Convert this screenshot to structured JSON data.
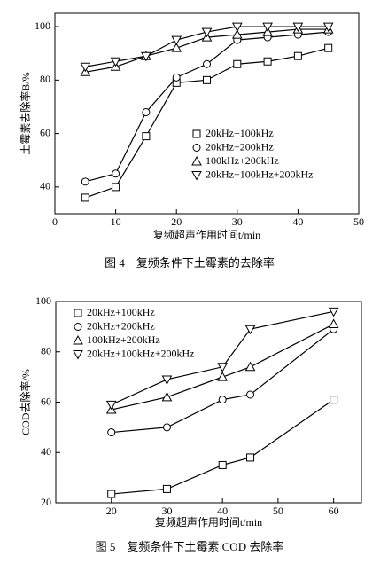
{
  "chart_data": [
    {
      "type": "line",
      "caption": "图 4　复频条件下土霉素的去除率",
      "x_label": "复频超声作用时间t/min",
      "y_label": "土霉素去除率B/%",
      "xlim": [
        0,
        50
      ],
      "xticks": [
        0,
        10,
        20,
        30,
        40,
        50
      ],
      "ylim": [
        30,
        105
      ],
      "yticks": [
        40,
        60,
        80,
        100
      ],
      "legend": "lower right",
      "series": [
        {
          "name": "20kHz+100kHz",
          "marker": "square",
          "color": "#000000",
          "x": [
            5,
            10,
            15,
            20,
            25,
            30,
            35,
            40,
            45
          ],
          "values": [
            36,
            40,
            59,
            79,
            80,
            86,
            87,
            89,
            92
          ]
        },
        {
          "name": "20kHz+200kHz",
          "marker": "circle",
          "color": "#000000",
          "x": [
            5,
            10,
            15,
            20,
            25,
            30,
            35,
            40,
            45
          ],
          "values": [
            42,
            45,
            68,
            81,
            86,
            95,
            96,
            97,
            98
          ]
        },
        {
          "name": "100kHz+200kHz",
          "marker": "triangle-up",
          "color": "#000000",
          "x": [
            5,
            10,
            15,
            20,
            25,
            30,
            35,
            40,
            45
          ],
          "values": [
            83,
            85,
            89,
            92,
            96,
            97,
            98,
            99,
            99
          ]
        },
        {
          "name": "20kHz+100kHz+200kHz",
          "marker": "triangle-down",
          "color": "#000000",
          "x": [
            5,
            10,
            15,
            20,
            25,
            30,
            35,
            40,
            45
          ],
          "values": [
            85,
            87,
            89,
            95,
            98,
            100,
            100,
            100,
            100
          ]
        }
      ]
    },
    {
      "type": "line",
      "caption": "图 5　复频条件下土霉素 COD 去除率",
      "x_label": "复频超声作用时间t/min",
      "y_label": "COD去除率/%",
      "xlim": [
        10,
        65
      ],
      "xticks": [
        20,
        30,
        40,
        50,
        60
      ],
      "ylim": [
        20,
        100
      ],
      "yticks": [
        20,
        40,
        60,
        80,
        100
      ],
      "legend": "upper left",
      "series": [
        {
          "name": "20kHz+100kHz",
          "marker": "square",
          "color": "#000000",
          "x": [
            20,
            30,
            40,
            45,
            60
          ],
          "values": [
            23.5,
            25.5,
            35,
            38,
            61
          ]
        },
        {
          "name": "20kHz+200kHz",
          "marker": "circle",
          "color": "#000000",
          "x": [
            20,
            30,
            40,
            45,
            60
          ],
          "values": [
            48,
            50,
            61,
            63,
            89
          ]
        },
        {
          "name": "100kHz+200kHz",
          "marker": "triangle-up",
          "color": "#000000",
          "x": [
            20,
            30,
            40,
            45,
            60
          ],
          "values": [
            57,
            62,
            70,
            74,
            91
          ]
        },
        {
          "name": "20kHz+100kHz+200kHz",
          "marker": "triangle-down",
          "color": "#000000",
          "x": [
            20,
            30,
            40,
            45,
            60
          ],
          "values": [
            59,
            69,
            74,
            89,
            96
          ]
        }
      ]
    }
  ]
}
